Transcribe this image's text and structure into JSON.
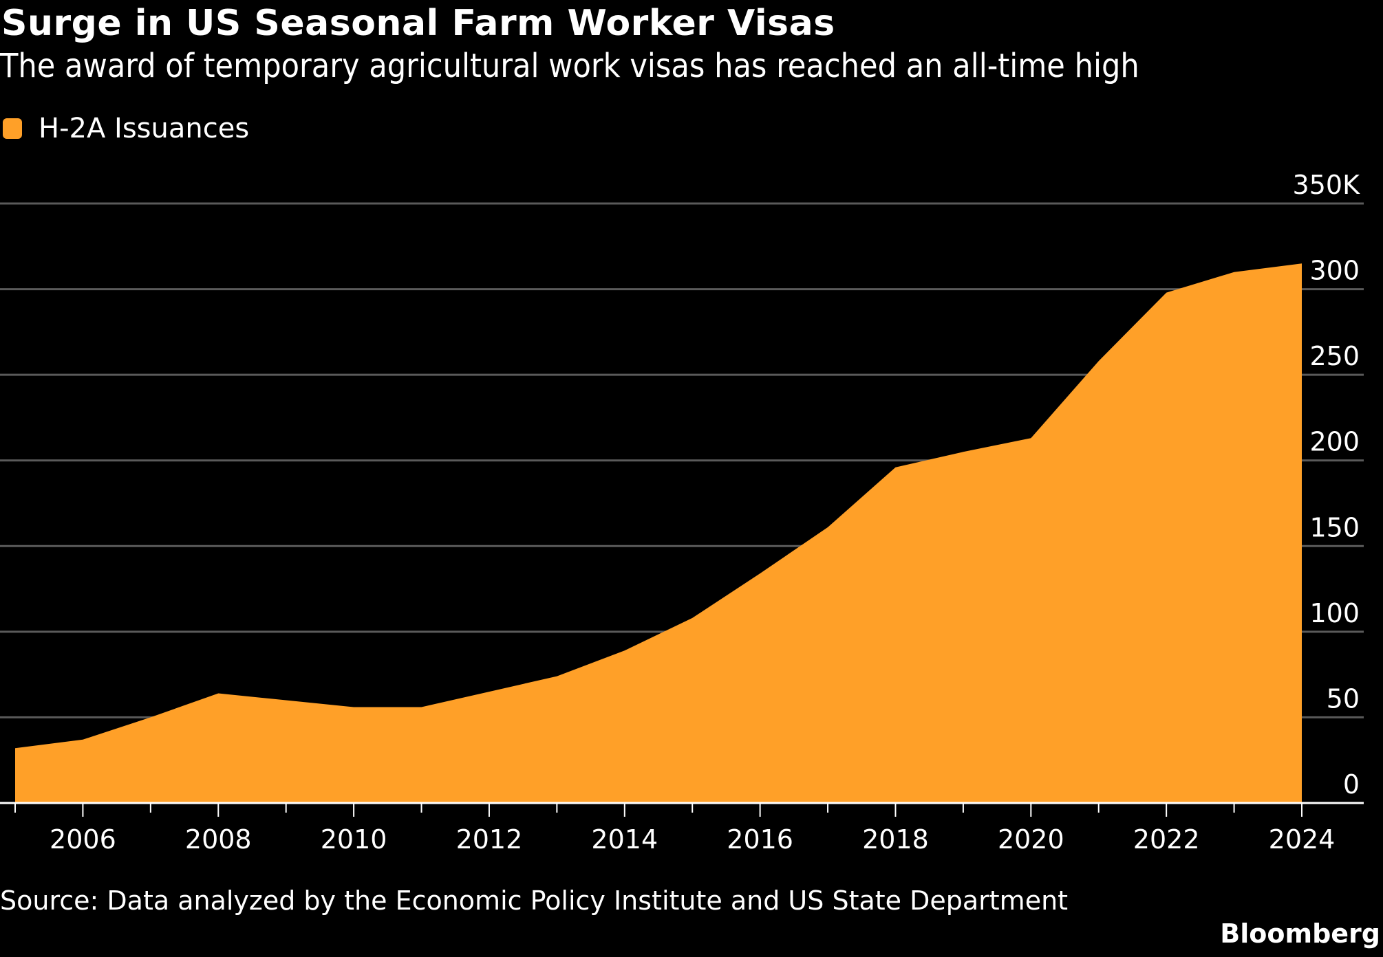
{
  "header": {
    "title": "Surge in US Seasonal Farm Worker Visas",
    "subtitle": "The award of temporary agricultural work visas has reached an all-time high"
  },
  "legend": {
    "items": [
      {
        "label": "H-2A Issuances",
        "color": "#FFA028"
      }
    ]
  },
  "footer": {
    "source": "Source: Data analyzed by the Economic Policy Institute and US State Department",
    "brand": "Bloomberg"
  },
  "chart_data": {
    "type": "area",
    "title": "Surge in US Seasonal Farm Worker Visas",
    "subtitle": "The award of temporary agricultural work visas has reached an all-time high",
    "xlabel": "",
    "ylabel": "",
    "x": [
      2005,
      2006,
      2007,
      2008,
      2009,
      2010,
      2011,
      2012,
      2013,
      2014,
      2015,
      2016,
      2017,
      2018,
      2019,
      2020,
      2021,
      2022,
      2023,
      2024
    ],
    "series": [
      {
        "name": "H-2A Issuances",
        "color": "#FFA028",
        "values": [
          32000,
          37000,
          50000,
          64000,
          60000,
          56000,
          56000,
          65000,
          74000,
          89000,
          108000,
          134000,
          161000,
          196000,
          205000,
          213000,
          258000,
          298000,
          310000,
          315000
        ]
      }
    ],
    "x_tick_labels": [
      "2006",
      "2008",
      "2010",
      "2012",
      "2014",
      "2016",
      "2018",
      "2020",
      "2022",
      "2024"
    ],
    "y_tick_labels": [
      "0",
      "50",
      "100",
      "150",
      "200",
      "250",
      "300",
      "350K"
    ],
    "y_ticks": [
      0,
      50000,
      100000,
      150000,
      200000,
      250000,
      300000,
      350000
    ],
    "ylim": [
      0,
      350000
    ],
    "xlim": [
      2005,
      2024
    ],
    "grid": "horizontal",
    "y_axis_position": "right",
    "legend_position": "top-left",
    "background": "#000000"
  }
}
